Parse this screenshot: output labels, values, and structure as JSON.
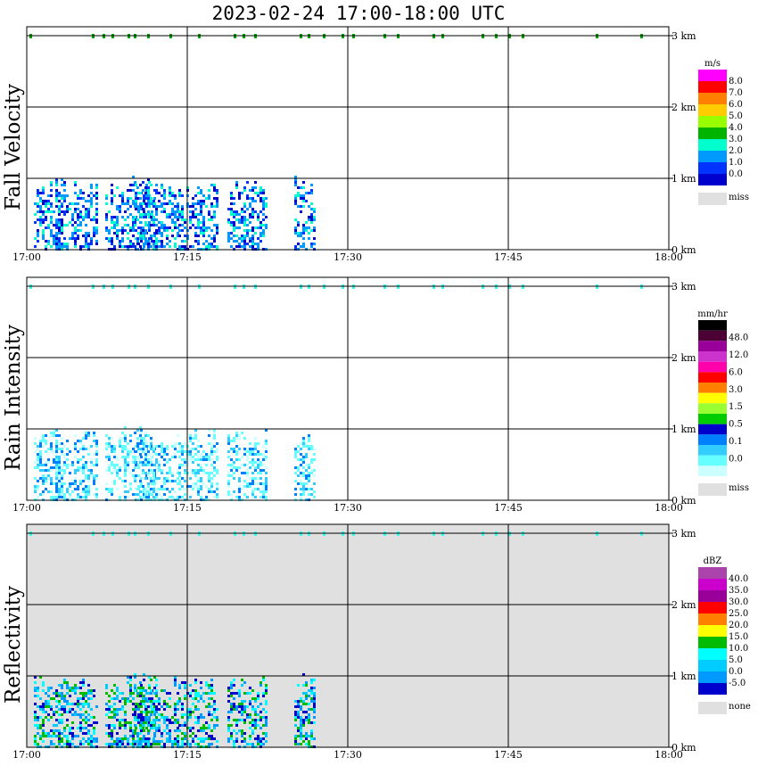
{
  "title": "2023-02-24  17:00-18:00 UTC",
  "time_labels": [
    "17:00",
    "17:15",
    "17:30",
    "17:45",
    "18:00"
  ],
  "height_labels": [
    "0 km",
    "1 km",
    "2 km",
    "3 km"
  ],
  "chart_data": [
    {
      "type": "heatmap",
      "ylabel": "Fall Velocity",
      "xlim": [
        "17:00",
        "18:00"
      ],
      "ylim_km": [
        0,
        3
      ],
      "grid": true,
      "colorbar": {
        "unit": "m/s",
        "levels": [
          "8.0",
          "7.0",
          "6.0",
          "5.0",
          "4.0",
          "3.0",
          "2.0",
          "1.0",
          "0.0"
        ],
        "colors": [
          "#ff00ff",
          "#ff0000",
          "#ff7f00",
          "#ffcc00",
          "#99ff00",
          "#00b300",
          "#00ffcc",
          "#0099ff",
          "#0033ff",
          "#0000cc"
        ],
        "miss_label": "miss",
        "miss_color": "#e0e0e0"
      },
      "background": "#ffffff"
    },
    {
      "type": "heatmap",
      "ylabel": "Rain Intensity",
      "xlim": [
        "17:00",
        "18:00"
      ],
      "ylim_km": [
        0,
        3
      ],
      "grid": true,
      "colorbar": {
        "unit": "mm/hr",
        "levels": [
          "48.0",
          "12.0",
          "6.0",
          "3.0",
          "1.5",
          "0.5",
          "0.1",
          "0.0"
        ],
        "colors": [
          "#000000",
          "#4d0033",
          "#990099",
          "#cc33cc",
          "#ff00aa",
          "#ff0000",
          "#ff7f00",
          "#ffff00",
          "#99ff33",
          "#00cc00",
          "#0000cc",
          "#0080ff",
          "#33ccff",
          "#66ffff",
          "#ccffff"
        ],
        "miss_label": "miss",
        "miss_color": "#e0e0e0"
      },
      "background": "#ffffff"
    },
    {
      "type": "heatmap",
      "ylabel": "Reflectivity",
      "xlim": [
        "17:00",
        "18:00"
      ],
      "ylim_km": [
        0,
        3
      ],
      "grid": true,
      "colorbar": {
        "unit": "dBZ",
        "levels": [
          "40.0",
          "35.0",
          "30.0",
          "25.0",
          "20.0",
          "15.0",
          "10.0",
          "5.0",
          "0.0",
          "-5.0"
        ],
        "colors": [
          "#aa44aa",
          "#cc00cc",
          "#990099",
          "#ff0000",
          "#ff7f00",
          "#ffff00",
          "#00bb00",
          "#00ffff",
          "#00ccff",
          "#0099ff",
          "#0000cc"
        ],
        "miss_label": "none",
        "miss_color": "#e0e0e0"
      },
      "background": "#e0e0e0"
    }
  ]
}
